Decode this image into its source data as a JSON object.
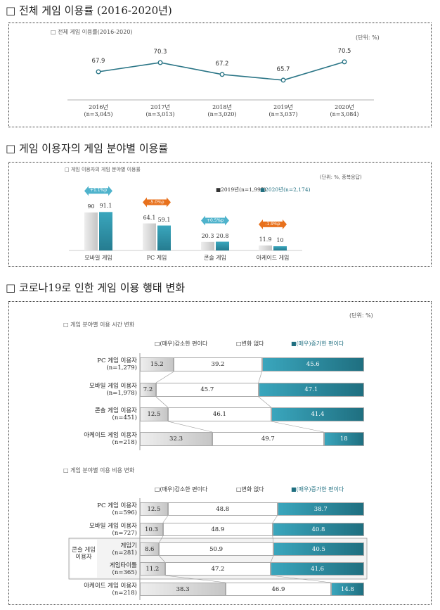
{
  "headings": [
    "□ 전체 게임 이용률 (2016-2020년)",
    "□ 게임 이용자의 게임 분야별 이용률",
    "□ 코로나19로 인한 게임 이용 행태 변화"
  ],
  "colors": {
    "teal": "#2e8ba0",
    "gray": "#d3d3d3",
    "orange": "#e8711c",
    "cyan": "#4fb3cc"
  },
  "chart_data": [
    {
      "type": "line",
      "title": "□ 전체 게임 이용률(2016-2020)",
      "unit": "(단위: %)",
      "categories": [
        "2016년",
        "2017년",
        "2018년",
        "2019년",
        "2020년"
      ],
      "n": [
        "(n=3,045)",
        "(n=3,013)",
        "(n=3,020)",
        "(n=3,037)",
        "(n=3,084)"
      ],
      "values": [
        67.9,
        70.3,
        67.2,
        65.7,
        70.5
      ]
    },
    {
      "type": "bar",
      "title": "□ 게임 이용자의 게임 분야별 이용률",
      "unit": "(단위: %, 중복응답)",
      "categories": [
        "모바일 게임",
        "PC 게임",
        "콘솔 게임",
        "아케이드 게임"
      ],
      "series": [
        {
          "name": "■2019년(n=1,995)",
          "values": [
            90.0,
            64.1,
            20.3,
            11.9
          ]
        },
        {
          "name": "■2020년(n=2,174)",
          "values": [
            91.1,
            59.1,
            20.8,
            10.0
          ]
        }
      ],
      "changes": [
        "+1.1%p",
        "-5.0%p",
        "+0.5%p",
        "-1.9%p"
      ]
    },
    {
      "type": "bar",
      "stacked": true,
      "horizontal": true,
      "title": "□ 게임 분야별 이용 시간 변화",
      "unit": "(단위: %)",
      "legend": [
        "□(매우)감소한 편이다",
        "□변화 없다",
        "■(매우)증가한 편이다"
      ],
      "rows": [
        {
          "label": "PC 게임 이용자",
          "n": "(n=1,279)",
          "values": [
            15.2,
            39.2,
            45.6
          ]
        },
        {
          "label": "모바일 게임 이용자",
          "n": "(n=1,978)",
          "values": [
            7.2,
            45.7,
            47.1
          ]
        },
        {
          "label": "콘솔 게임 이용자",
          "n": "(n=451)",
          "values": [
            12.5,
            46.1,
            41.4
          ]
        },
        {
          "label": "아케이드 게임 이용자",
          "n": "(n=218)",
          "values": [
            32.3,
            49.7,
            18.0
          ]
        }
      ]
    },
    {
      "type": "bar",
      "stacked": true,
      "horizontal": true,
      "title": "□ 게임 분야별 이용 비용 변화",
      "legend": [
        "□(매우)감소한 편이다",
        "□변화 없다",
        "■(매우)증가한 편이다"
      ],
      "group_label": "콘솔 게임 이용자",
      "rows": [
        {
          "label": "PC 게임 이용자",
          "n": "(n=596)",
          "values": [
            12.5,
            48.8,
            38.7
          ]
        },
        {
          "label": "모바일 게임 이용자",
          "n": "(n=727)",
          "values": [
            10.3,
            48.9,
            40.8
          ]
        },
        {
          "label": "게임기",
          "n": "(n=281)",
          "values": [
            8.6,
            50.9,
            40.5
          ]
        },
        {
          "label": "게임타이틀",
          "n": "(n=365)",
          "values": [
            11.2,
            47.2,
            41.6
          ]
        },
        {
          "label": "아케이드 게임 이용자",
          "n": "(n=218)",
          "values": [
            38.3,
            46.9,
            14.8
          ]
        }
      ]
    }
  ]
}
